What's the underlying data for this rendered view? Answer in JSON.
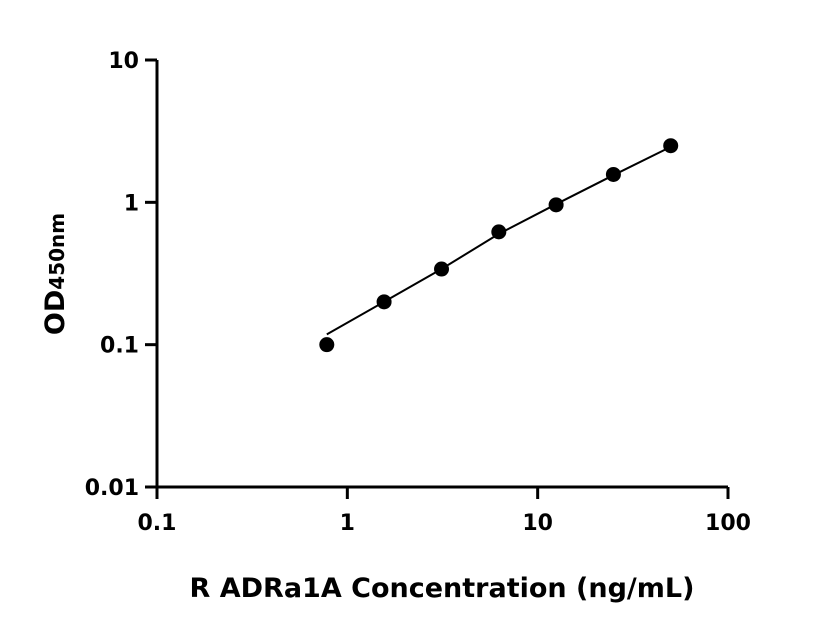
{
  "chart_data": {
    "type": "scatter",
    "title": "",
    "xlabel": "R ADRa1A Concentration (ng/mL)",
    "ylabel_main": "OD",
    "ylabel_sub": "450nm",
    "x_scale": "log",
    "y_scale": "log",
    "xlim": [
      0.1,
      100
    ],
    "ylim": [
      0.01,
      10
    ],
    "x_ticks": [
      0.1,
      1,
      10,
      100
    ],
    "x_tick_labels": [
      "0.1",
      "1",
      "10",
      "100"
    ],
    "y_ticks": [
      0.01,
      0.1,
      1,
      10
    ],
    "y_tick_labels": [
      "0.01",
      "0.1",
      "1",
      "10"
    ],
    "grid": false,
    "series": [
      {
        "x": [
          0.78,
          1.56,
          3.125,
          6.25,
          12.5,
          25,
          50
        ],
        "y": [
          0.1,
          0.2,
          0.34,
          0.62,
          0.96,
          1.57,
          2.5
        ],
        "fit_y": [
          0.118,
          0.2,
          0.34,
          0.6,
          0.97,
          1.55,
          2.45
        ],
        "color": "#000000"
      }
    ]
  }
}
